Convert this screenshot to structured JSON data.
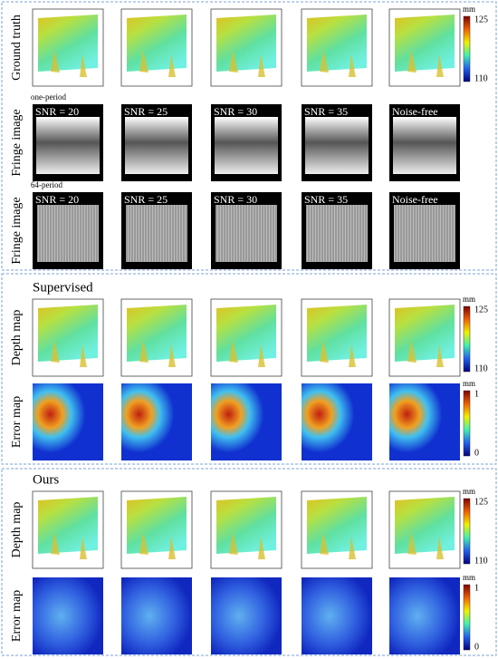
{
  "sections": [
    {
      "rows": [
        {
          "label": "Ground truth",
          "style": "depth",
          "colorbar": {
            "unit": "mm",
            "max": 125,
            "min": 110
          }
        },
        {
          "label": "Fringe image",
          "caption": "one-period",
          "style": "fringe-coarse",
          "panel_labels": [
            "SNR = 20",
            "SNR = 25",
            "SNR = 30",
            "SNR = 35",
            "Noise-free"
          ]
        },
        {
          "label": "Fringe image",
          "caption": "64-period",
          "style": "fringe-fine",
          "panel_labels": [
            "SNR = 20",
            "SNR = 25",
            "SNR = 30",
            "SNR = 35",
            "Noise-free"
          ]
        }
      ]
    },
    {
      "heading": "Supervised",
      "rows": [
        {
          "label": "Depth map",
          "style": "depth",
          "colorbar": {
            "unit": "mm",
            "max": 125,
            "min": 110
          }
        },
        {
          "label": "Error map",
          "style": "error-high",
          "colorbar": {
            "unit": "mm",
            "max": 1,
            "min": 0
          }
        }
      ]
    },
    {
      "heading": "Ours",
      "rows": [
        {
          "label": "Depth map",
          "style": "depth",
          "colorbar": {
            "unit": "mm",
            "max": 125,
            "min": 110
          }
        },
        {
          "label": "Error map",
          "style": "error-low",
          "colorbar": {
            "unit": "mm",
            "max": 1,
            "min": 0
          }
        }
      ]
    }
  ]
}
